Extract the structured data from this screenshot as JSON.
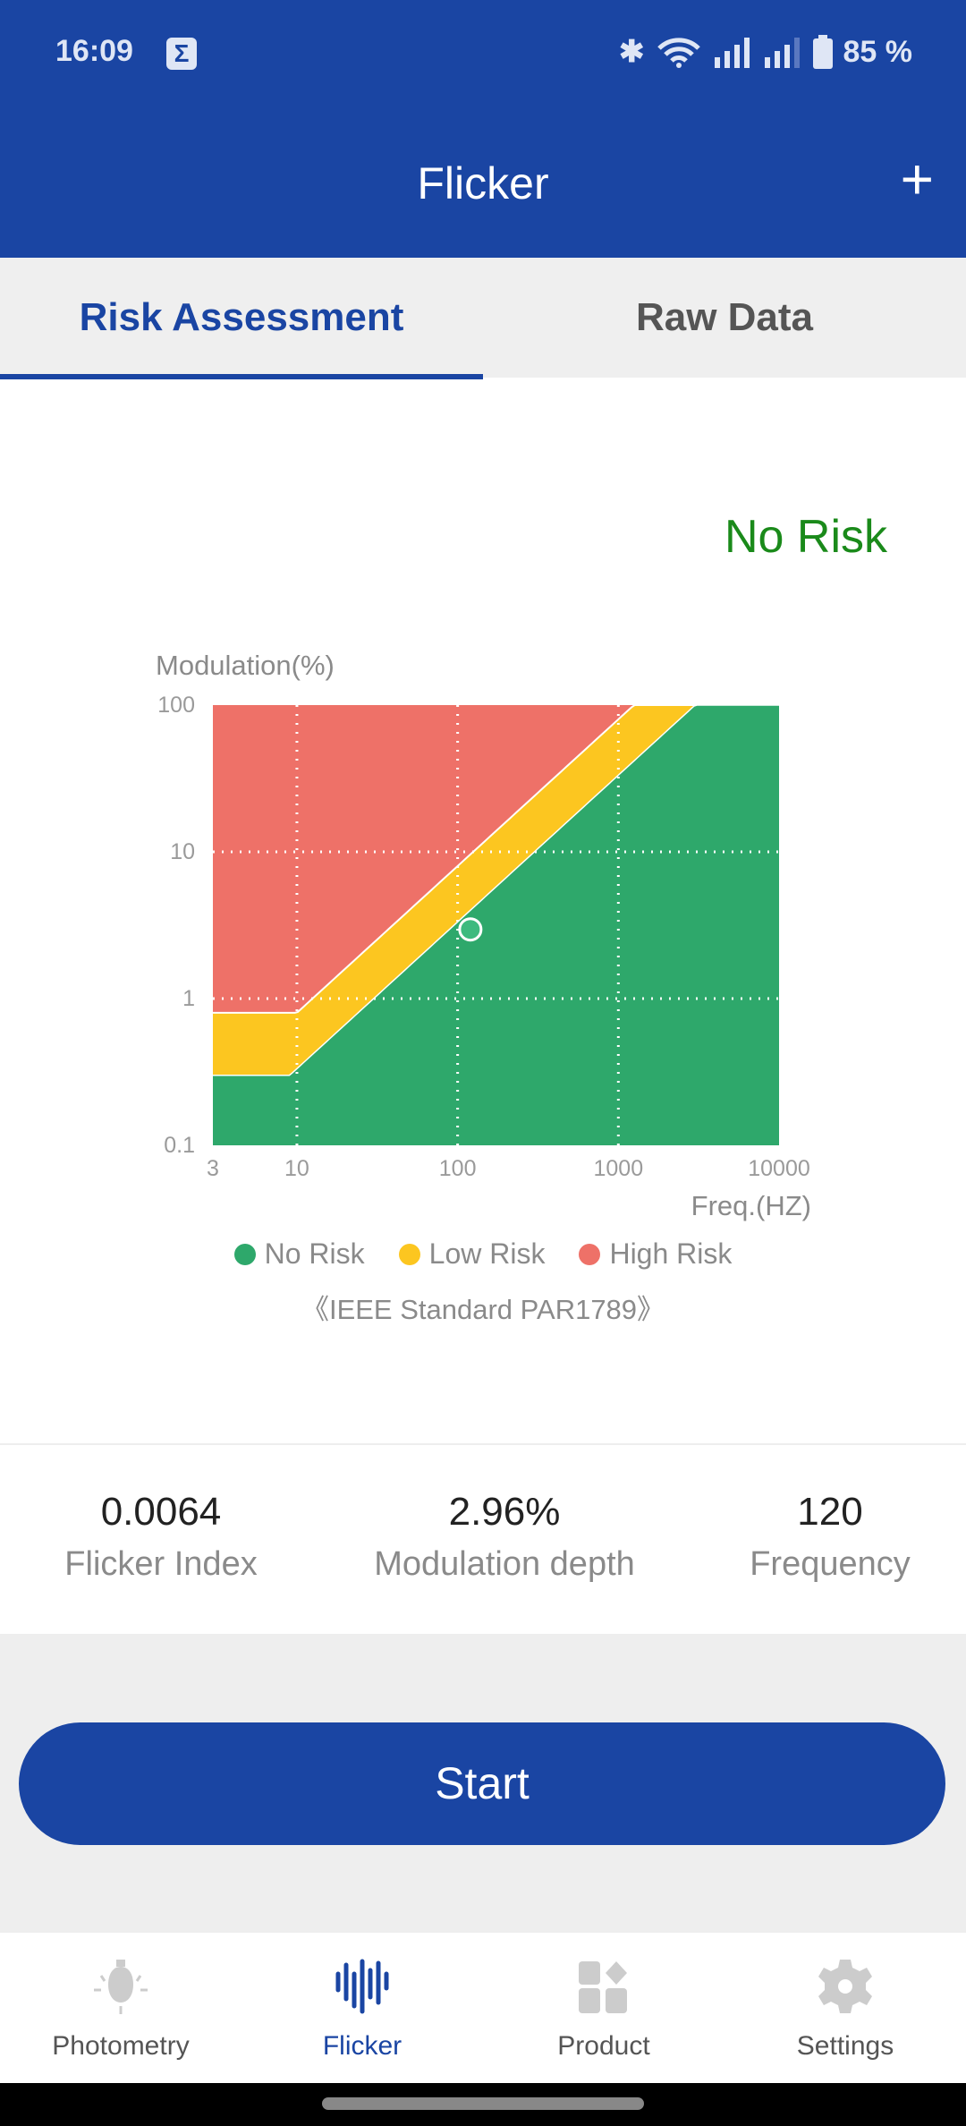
{
  "status_bar": {
    "time": "16:09",
    "battery": "85 %",
    "icons": [
      "sigma-icon",
      "bluetooth-icon",
      "wifi-icon",
      "signal-icon",
      "signal-icon",
      "battery-icon"
    ]
  },
  "app_bar": {
    "title": "Flicker",
    "add_icon": "plus-icon"
  },
  "tabs": [
    {
      "label": "Risk Assessment",
      "active": true
    },
    {
      "label": "Raw Data",
      "active": false
    }
  ],
  "result": {
    "label": "No Risk",
    "color": "#1a8a1a"
  },
  "chart_data": {
    "type": "area",
    "xlabel": "Freq.(HZ)",
    "ylabel": "Modulation(%)",
    "x_scale": "log",
    "y_scale": "log",
    "xlim": [
      3,
      10000
    ],
    "ylim": [
      0.1,
      100
    ],
    "x_ticks": [
      "3",
      "10",
      "100",
      "1000",
      "10000"
    ],
    "y_ticks": [
      "100",
      "10",
      "1",
      "0.1"
    ],
    "grid": true,
    "regions": [
      {
        "name": "No Risk",
        "color": "#2ea86b"
      },
      {
        "name": "Low Risk",
        "color": "#fcc620"
      },
      {
        "name": "High Risk",
        "color": "#ee7168"
      }
    ],
    "point": {
      "x": 120,
      "y": 2.96
    },
    "legend": [
      "No Risk",
      "Low Risk",
      "High Risk"
    ],
    "legend_placement": "bottom",
    "note": "《IEEE Standard PAR1789》"
  },
  "stats": [
    {
      "value": "0.0064",
      "label": "Flicker Index"
    },
    {
      "value": "2.96%",
      "label": "Modulation depth"
    },
    {
      "value": "120",
      "label": "Frequency"
    }
  ],
  "start_button": "Start",
  "nav": [
    {
      "label": "Photometry",
      "icon": "bulb-icon",
      "active": false
    },
    {
      "label": "Flicker",
      "icon": "waveform-icon",
      "active": true
    },
    {
      "label": "Product",
      "icon": "product-grid-icon",
      "active": false
    },
    {
      "label": "Settings",
      "icon": "gear-icon",
      "active": false
    }
  ],
  "colors": {
    "primary": "#1a45a3",
    "no_risk": "#2ea86b",
    "low_risk": "#fcc620",
    "high_risk": "#ee7168"
  }
}
